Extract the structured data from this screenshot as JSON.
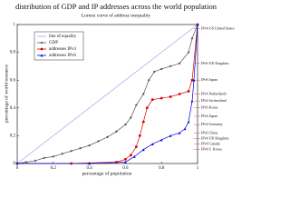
{
  "chart_data": {
    "type": "line",
    "title": "distribution of GDP and IP addresses across the world population",
    "subtitle": "Lorenz curve of address inequality",
    "x_label": "percentage of population",
    "y_label": "percentage of world resource",
    "xlim": [
      0,
      1
    ],
    "ylim": [
      0,
      1
    ],
    "xticks": [
      0,
      0.2,
      0.4,
      0.6,
      0.8,
      1
    ],
    "yticks": [
      0,
      0.2,
      0.4,
      0.6,
      0.8,
      1
    ],
    "legend": "top-left",
    "series": [
      {
        "name": "line of equality",
        "color": "#9aa8e8",
        "marker": "none",
        "x": [
          0,
          1
        ],
        "values": [
          0,
          1
        ]
      },
      {
        "name": "GDP",
        "color": "#555555",
        "marker": "diamond",
        "x": [
          0,
          0.05,
          0.1,
          0.15,
          0.2,
          0.25,
          0.3,
          0.35,
          0.4,
          0.45,
          0.5,
          0.55,
          0.6,
          0.63,
          0.66,
          0.7,
          0.73,
          0.76,
          0.8,
          0.85,
          0.9,
          0.95,
          0.97,
          1
        ],
        "values": [
          0,
          0.01,
          0.02,
          0.04,
          0.05,
          0.07,
          0.09,
          0.11,
          0.13,
          0.16,
          0.19,
          0.23,
          0.28,
          0.33,
          0.42,
          0.5,
          0.6,
          0.66,
          0.68,
          0.7,
          0.72,
          0.8,
          0.9,
          1
        ]
      },
      {
        "name": "addresses IPv4",
        "color": "#dd0000",
        "marker": "circle",
        "x": [
          0,
          0.3,
          0.55,
          0.6,
          0.63,
          0.66,
          0.68,
          0.7,
          0.72,
          0.75,
          0.8,
          0.85,
          0.9,
          0.95,
          0.97,
          1
        ],
        "values": [
          0,
          0,
          0.01,
          0.03,
          0.06,
          0.12,
          0.2,
          0.3,
          0.4,
          0.46,
          0.47,
          0.48,
          0.5,
          0.52,
          0.6,
          1
        ]
      },
      {
        "name": "addresses IPv6",
        "color": "#0000dd",
        "marker": "triangle",
        "x": [
          0,
          0.4,
          0.6,
          0.65,
          0.7,
          0.75,
          0.8,
          0.85,
          0.9,
          0.93,
          0.95,
          0.97,
          0.98,
          1
        ],
        "values": [
          0,
          0,
          0.01,
          0.05,
          0.1,
          0.14,
          0.17,
          0.2,
          0.22,
          0.25,
          0.3,
          0.45,
          0.6,
          1
        ]
      }
    ],
    "annotations": [
      {
        "text": "IPv4-US United States",
        "y": 0.97
      },
      {
        "text": "IPv6 UK Kingdom",
        "y": 0.72
      },
      {
        "text": "IPv6 Japan",
        "y": 0.6
      },
      {
        "text": "IPv4 Netherlands",
        "y": 0.5
      },
      {
        "text": "IPv4 Switzerland",
        "y": 0.45
      },
      {
        "text": "IPv6 Korea",
        "y": 0.4
      },
      {
        "text": "IPv4 Japan",
        "y": 0.34
      },
      {
        "text": "IPv4 Germany",
        "y": 0.28
      },
      {
        "text": "IPv6 China",
        "y": 0.22
      },
      {
        "text": "IPv4 UK Kingdom",
        "y": 0.18
      },
      {
        "text": "IPv4 Canada",
        "y": 0.14
      },
      {
        "text": "IPv4 S. Korea",
        "y": 0.1
      }
    ]
  }
}
